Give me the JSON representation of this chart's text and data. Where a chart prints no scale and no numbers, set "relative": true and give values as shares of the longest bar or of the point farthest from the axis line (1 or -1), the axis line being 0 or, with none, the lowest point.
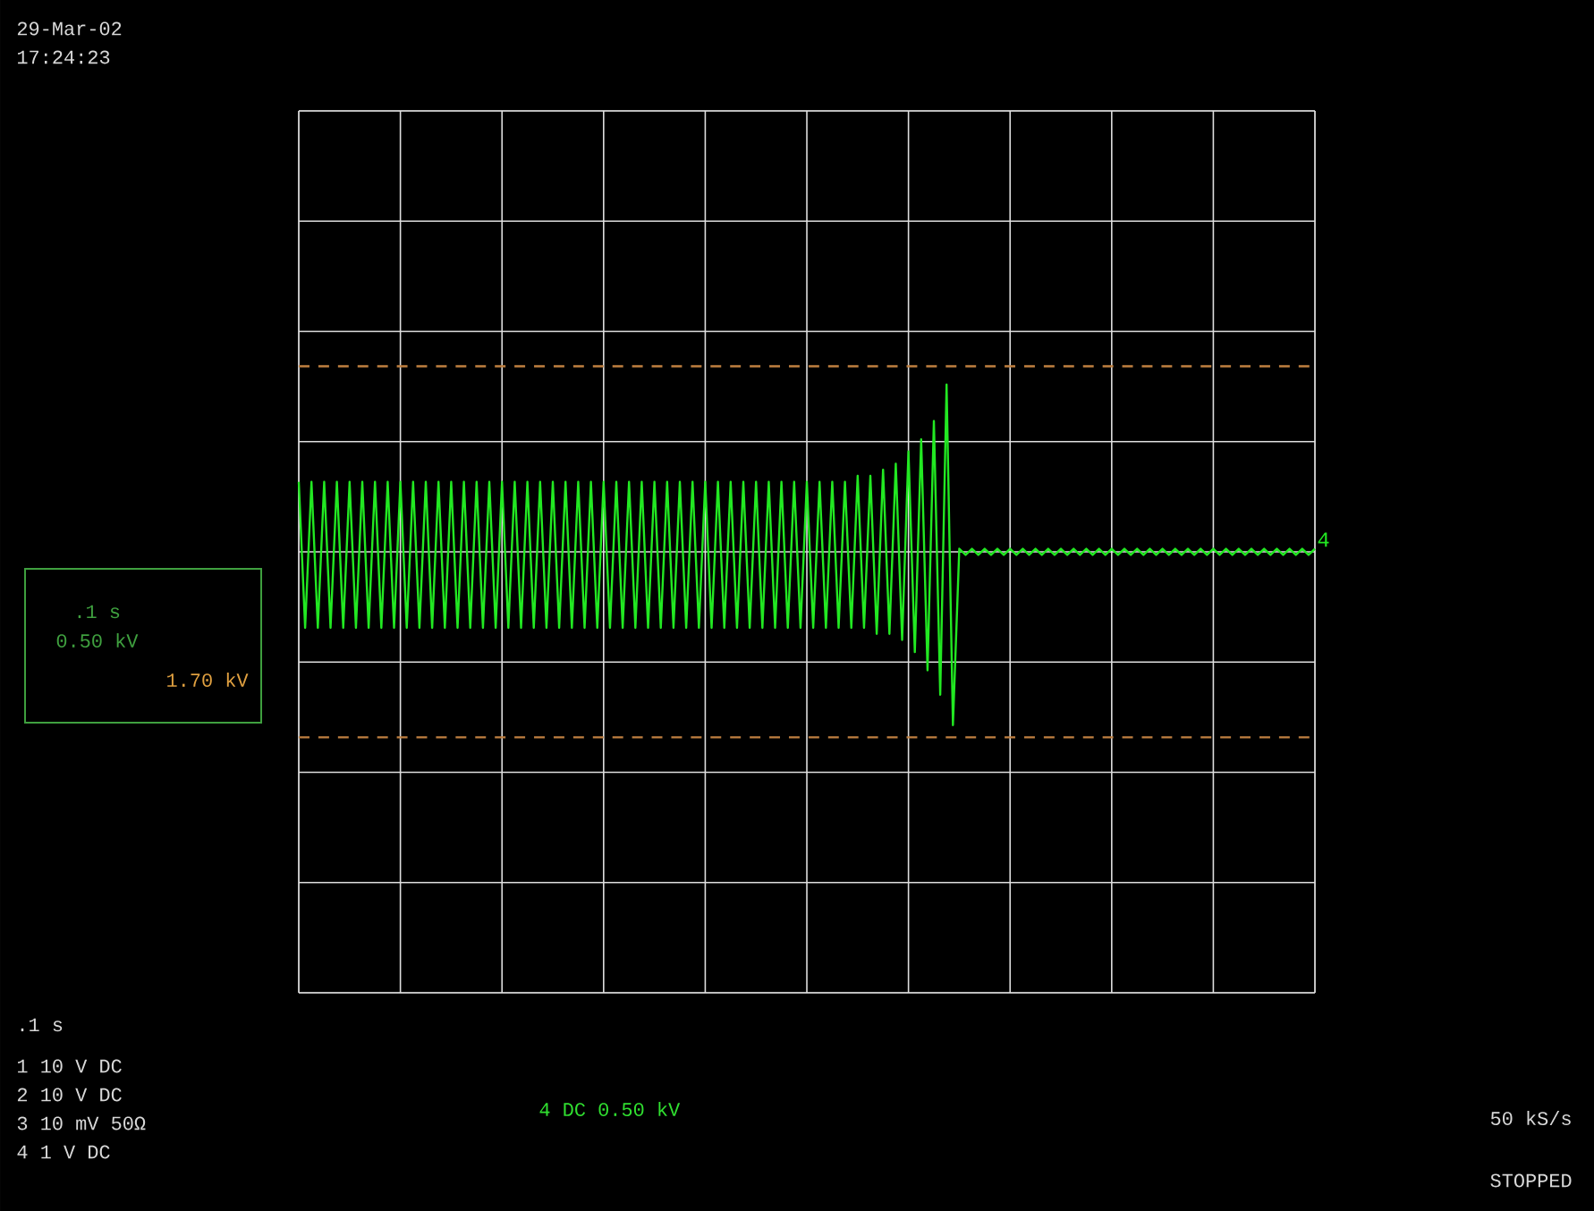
{
  "chart_data": {
    "type": "line",
    "relative": true,
    "grid": true,
    "marker": "none",
    "line_style": "solid",
    "categories": [
      null,
      null,
      null,
      null,
      null,
      null,
      null,
      null,
      null,
      null,
      null,
      null,
      null,
      null,
      null,
      null,
      null,
      null,
      null,
      null,
      null,
      null,
      null,
      null,
      null,
      null,
      null,
      null,
      null,
      null,
      null,
      null,
      null,
      null,
      null,
      null,
      null,
      null,
      null,
      null,
      null,
      null,
      null,
      null,
      null,
      null,
      null,
      null,
      null,
      null,
      null,
      null,
      null,
      null,
      null,
      null,
      null,
      null,
      null,
      null,
      null,
      null,
      null,
      null,
      null,
      null,
      null,
      null,
      null,
      null,
      null,
      null,
      null,
      null,
      null,
      null,
      null,
      null,
      null,
      null,
      null,
      null,
      null,
      null,
      null,
      null,
      null,
      null,
      null,
      null,
      null,
      null,
      null,
      null,
      null,
      null,
      null,
      null,
      null,
      null,
      null,
      null,
      null,
      null,
      null,
      null,
      null,
      null,
      null,
      null,
      null,
      null,
      null,
      null,
      null,
      null,
      null,
      null,
      null,
      null,
      null,
      null,
      null,
      null,
      null,
      null,
      null,
      null,
      null,
      null,
      null,
      null,
      null,
      null,
      null,
      null,
      null,
      null,
      null,
      null,
      null,
      null,
      null,
      null,
      null,
      null,
      null,
      null,
      null,
      null,
      null,
      null,
      null,
      null,
      null,
      null,
      null,
      null,
      null,
      null,
      null
    ],
    "series": [
      {
        "name": "4",
        "color": "#22e822",
        "values": [
          0.84,
          0.6,
          0.84,
          0.6,
          0.84,
          0.6,
          0.84,
          0.6,
          0.84,
          0.6,
          0.84,
          0.6,
          0.84,
          0.6,
          0.84,
          0.6,
          0.84,
          0.6,
          0.84,
          0.6,
          0.84,
          0.6,
          0.84,
          0.6,
          0.84,
          0.6,
          0.84,
          0.6,
          0.84,
          0.6,
          0.84,
          0.6,
          0.84,
          0.6,
          0.84,
          0.6,
          0.84,
          0.6,
          0.84,
          0.6,
          0.84,
          0.6,
          0.84,
          0.6,
          0.84,
          0.6,
          0.84,
          0.6,
          0.84,
          0.6,
          0.84,
          0.6,
          0.84,
          0.6,
          0.84,
          0.6,
          0.84,
          0.6,
          0.84,
          0.6,
          0.84,
          0.6,
          0.84,
          0.6,
          0.84,
          0.6,
          0.84,
          0.6,
          0.84,
          0.6,
          0.84,
          0.6,
          0.84,
          0.6,
          0.84,
          0.6,
          0.84,
          0.6,
          0.84,
          0.6,
          0.84,
          0.6,
          0.84,
          0.6,
          0.84,
          0.6,
          0.84,
          0.6,
          0.85,
          0.6,
          0.85,
          0.59,
          0.86,
          0.59,
          0.87,
          0.58,
          0.89,
          0.56,
          0.91,
          0.53,
          0.94,
          0.49,
          1,
          0.44,
          0.73,
          0.72,
          0.73,
          0.72,
          0.73,
          0.72,
          0.73,
          0.72,
          0.73,
          0.72,
          0.73,
          0.72,
          0.73,
          0.72,
          0.73,
          0.72,
          0.73,
          0.72,
          0.73,
          0.72,
          0.73,
          0.72,
          0.73,
          0.72,
          0.73,
          0.72,
          0.73,
          0.72,
          0.73,
          0.72,
          0.73,
          0.72,
          0.73,
          0.72,
          0.73,
          0.72,
          0.73,
          0.72,
          0.73,
          0.72,
          0.73,
          0.72,
          0.73,
          0.72,
          0.73,
          0.72,
          0.73,
          0.72,
          0.73,
          0.72,
          0.73,
          0.72,
          0.73,
          0.72,
          0.73,
          0.72,
          0.73
        ]
      }
    ],
    "ref_lines": [
      {
        "axis": "y",
        "value": 1.03,
        "color": "#c08040",
        "line_style": "dashed"
      },
      {
        "axis": "y",
        "value": 0.42,
        "color": "#c08040",
        "line_style": "dashed"
      }
    ],
    "annotations": [
      "29-Mar-02",
      "17:24:23",
      ".1 s",
      "0.50 kV",
      "1.70 kV",
      ".1 s",
      "1  10  V  DC",
      "2  10  V  DC",
      "3  10 mV  50Ω",
      "4   1  V  DC",
      "4  DC 0.50 kV",
      "50 kS/s",
      "STOPPED"
    ]
  }
}
